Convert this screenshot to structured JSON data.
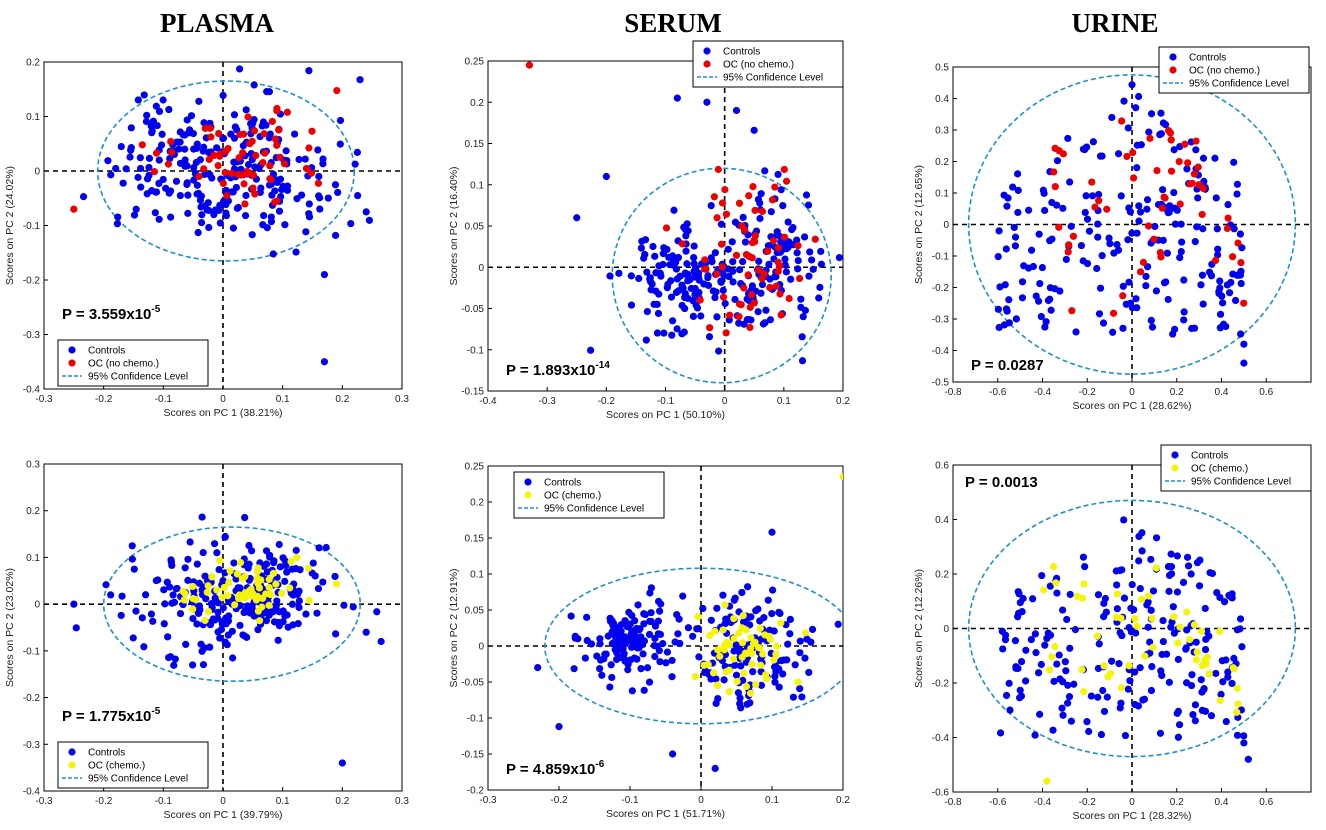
{
  "column_titles": [
    "PLASMA",
    "SERUM",
    "URINE"
  ],
  "legend_labels": {
    "controls": "Controls",
    "oc_no_chemo": "OC (no chemo.)",
    "oc_chemo": "OC (chemo.)",
    "confidence": "95% Confidence Level"
  },
  "colors": {
    "controls": "#0000ee",
    "oc_no_chemo": "#ee0000",
    "oc_chemo": "#f5f50a",
    "ellipse": "#1f8fd0",
    "zero_line": "#000000"
  },
  "chart_data": [
    {
      "id": "plasma-no-chemo",
      "type": "scatter",
      "column": "PLASMA",
      "xlabel": "Scores on PC 1 (38.21%)",
      "ylabel": "Scores on PC 2 (24.02%)",
      "xlim": [
        -0.3,
        0.3
      ],
      "ylim": [
        -0.4,
        0.2
      ],
      "xticks": [
        -0.3,
        -0.2,
        -0.1,
        0,
        0.1,
        0.2,
        0.3
      ],
      "yticks": [
        -0.4,
        -0.3,
        -0.2,
        -0.1,
        0,
        0.1,
        0.2
      ],
      "p_value": {
        "prefix": "P = 3.559x10",
        "exponent": "-5"
      },
      "legend": "bottom-left",
      "series": [
        {
          "name": "Controls",
          "n": 260
        },
        {
          "name": "OC (no chemo.)",
          "n": 65
        }
      ],
      "ellipse": {
        "center": [
          0.005,
          0.0
        ],
        "radii": [
          0.215,
          0.165
        ]
      },
      "outliers": [
        [
          -0.25,
          -0.07
        ],
        [
          0.17,
          -0.35
        ],
        [
          0.24,
          -0.075
        ],
        [
          0.17,
          -0.19
        ]
      ]
    },
    {
      "id": "serum-no-chemo",
      "type": "scatter",
      "column": "SERUM",
      "xlabel": "Scores on PC 1 (50.10%)",
      "ylabel": "Scores on PC 2 (16.40%)",
      "xlim": [
        -0.4,
        0.2
      ],
      "ylim": [
        -0.15,
        0.25
      ],
      "xticks": [
        -0.4,
        -0.3,
        -0.2,
        -0.1,
        0,
        0.1,
        0.2
      ],
      "yticks": [
        -0.15,
        -0.1,
        -0.05,
        0,
        0.05,
        0.1,
        0.15,
        0.2,
        0.25
      ],
      "p_value": {
        "prefix": "P = 1.893x10",
        "exponent": "-14"
      },
      "legend": "top-right",
      "series": [
        {
          "name": "Controls",
          "n": 260
        },
        {
          "name": "OC (no chemo.)",
          "n": 65
        }
      ],
      "ellipse": {
        "center": [
          -0.005,
          -0.01
        ],
        "radii": [
          0.185,
          0.13
        ]
      },
      "outliers": [
        [
          -0.33,
          0.245
        ],
        [
          -0.08,
          0.205
        ],
        [
          -0.03,
          0.2
        ],
        [
          0.02,
          0.19
        ],
        [
          -0.25,
          0.06
        ],
        [
          -0.2,
          0.11
        ]
      ]
    },
    {
      "id": "urine-no-chemo",
      "type": "scatter",
      "column": "URINE",
      "xlabel": "Scores on PC 1 (28.62%)",
      "ylabel": "Scores on PC 2 (12.65%)",
      "xlim": [
        -0.8,
        0.8
      ],
      "ylim": [
        -0.5,
        0.5
      ],
      "xticks": [
        -0.8,
        -0.6,
        -0.4,
        -0.2,
        0,
        0.2,
        0.4,
        0.6
      ],
      "yticks": [
        -0.5,
        -0.4,
        -0.3,
        -0.2,
        -0.1,
        0,
        0.1,
        0.2,
        0.3,
        0.4,
        0.5
      ],
      "p_value": {
        "prefix": "P = 0.0287",
        "exponent": ""
      },
      "legend": "top-right",
      "series": [
        {
          "name": "Controls",
          "n": 220
        },
        {
          "name": "OC (no chemo.)",
          "n": 55
        }
      ],
      "ellipse": {
        "center": [
          0.0,
          0.0
        ],
        "radii": [
          0.73,
          0.475
        ]
      },
      "outliers": [
        [
          0.5,
          -0.44
        ],
        [
          0.5,
          -0.38
        ]
      ]
    },
    {
      "id": "plasma-chemo",
      "type": "scatter",
      "column": "PLASMA",
      "xlabel": "Scores on PC 1 (39.79%)",
      "ylabel": "Scores on PC 2 (23.02%)",
      "xlim": [
        -0.3,
        0.3
      ],
      "ylim": [
        -0.4,
        0.3
      ],
      "xticks": [
        -0.3,
        -0.2,
        -0.1,
        0,
        0.1,
        0.2,
        0.3
      ],
      "yticks": [
        -0.4,
        -0.3,
        -0.2,
        -0.1,
        0,
        0.1,
        0.2,
        0.3
      ],
      "p_value": {
        "prefix": "P = 1.775x10",
        "exponent": "-5"
      },
      "legend": "bottom-left",
      "series": [
        {
          "name": "Controls",
          "n": 260
        },
        {
          "name": "OC (chemo.)",
          "n": 60
        }
      ],
      "ellipse": {
        "center": [
          0.015,
          0.0
        ],
        "radii": [
          0.215,
          0.165
        ]
      },
      "outliers": [
        [
          0.2,
          -0.34
        ],
        [
          0.265,
          -0.08
        ],
        [
          0.24,
          -0.06
        ],
        [
          -0.25,
          0.0
        ]
      ]
    },
    {
      "id": "serum-chemo",
      "type": "scatter",
      "column": "SERUM",
      "xlabel": "Scores on PC 1 (51.71%)",
      "ylabel": "Scores on PC 2 (12.91%)",
      "xlim": [
        -0.3,
        0.2
      ],
      "ylim": [
        -0.2,
        0.25
      ],
      "xticks": [
        -0.3,
        -0.2,
        -0.1,
        0,
        0.1,
        0.2
      ],
      "yticks": [
        -0.2,
        -0.15,
        -0.1,
        -0.05,
        0,
        0.05,
        0.1,
        0.15,
        0.2,
        0.25
      ],
      "p_value": {
        "prefix": "P = 4.859x10",
        "exponent": "-6"
      },
      "legend": "top-left",
      "series": [
        {
          "name": "Controls",
          "n": 260
        },
        {
          "name": "OC (chemo.)",
          "n": 60
        }
      ],
      "ellipse": {
        "center": [
          0.0,
          0.0
        ],
        "radii": [
          0.22,
          0.108
        ]
      },
      "outliers": [
        [
          0.2,
          0.235
        ],
        [
          0.1,
          0.158
        ],
        [
          -0.2,
          -0.112
        ],
        [
          -0.04,
          -0.15
        ],
        [
          0.02,
          -0.17
        ],
        [
          -0.23,
          -0.03
        ]
      ]
    },
    {
      "id": "urine-chemo",
      "type": "scatter",
      "column": "URINE",
      "xlabel": "Scores on PC 1 (28.32%)",
      "ylabel": "Scores on PC 2 (12.26%)",
      "xlim": [
        -0.8,
        0.8
      ],
      "ylim": [
        -0.6,
        0.6
      ],
      "xticks": [
        -0.8,
        -0.6,
        -0.4,
        -0.2,
        0,
        0.2,
        0.4,
        0.6
      ],
      "yticks": [
        -0.6,
        -0.4,
        -0.2,
        0,
        0.2,
        0.4,
        0.6
      ],
      "p_value": {
        "prefix": "P = 0.0013",
        "exponent": ""
      },
      "legend": "top-right",
      "series": [
        {
          "name": "Controls",
          "n": 220
        },
        {
          "name": "OC (chemo.)",
          "n": 50
        }
      ],
      "ellipse": {
        "center": [
          0.0,
          0.0
        ],
        "radii": [
          0.73,
          0.47
        ]
      },
      "outliers": [
        [
          -0.38,
          -0.56
        ],
        [
          0.52,
          -0.48
        ],
        [
          0.5,
          -0.42
        ]
      ]
    }
  ]
}
